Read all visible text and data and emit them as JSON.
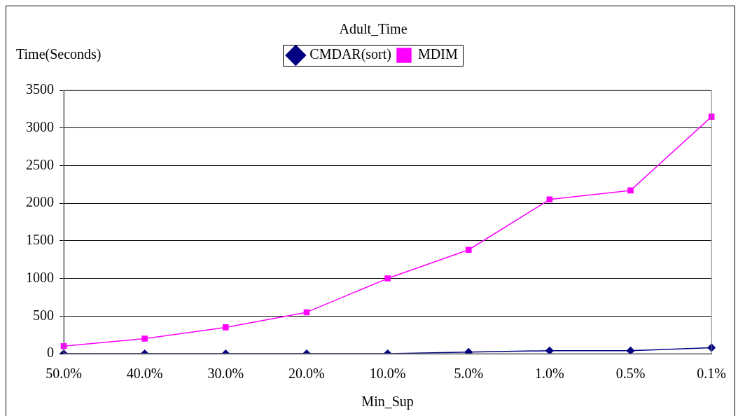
{
  "chart_data": {
    "type": "line",
    "title": "Adult_Time",
    "xlabel": "Min_Sup",
    "ylabel": "Time(Seconds)",
    "categories": [
      "50.0%",
      "40.0%",
      "30.0%",
      "20.0%",
      "10.0%",
      "5.0%",
      "1.0%",
      "0.5%",
      "0.1%"
    ],
    "series": [
      {
        "name": "CMDAR(sort)",
        "color": "#000080",
        "marker": "diamond",
        "values": [
          0,
          0,
          0,
          0,
          0,
          20,
          40,
          40,
          80
        ]
      },
      {
        "name": "MDIM",
        "color": "#ff00ff",
        "marker": "square",
        "values": [
          100,
          200,
          350,
          550,
          1000,
          1380,
          2050,
          2170,
          3150
        ]
      }
    ],
    "ylim": [
      0,
      3500
    ],
    "yticks": [
      0,
      500,
      1000,
      1500,
      2000,
      2500,
      3000,
      3500
    ],
    "grid": "y",
    "legend": "top"
  }
}
